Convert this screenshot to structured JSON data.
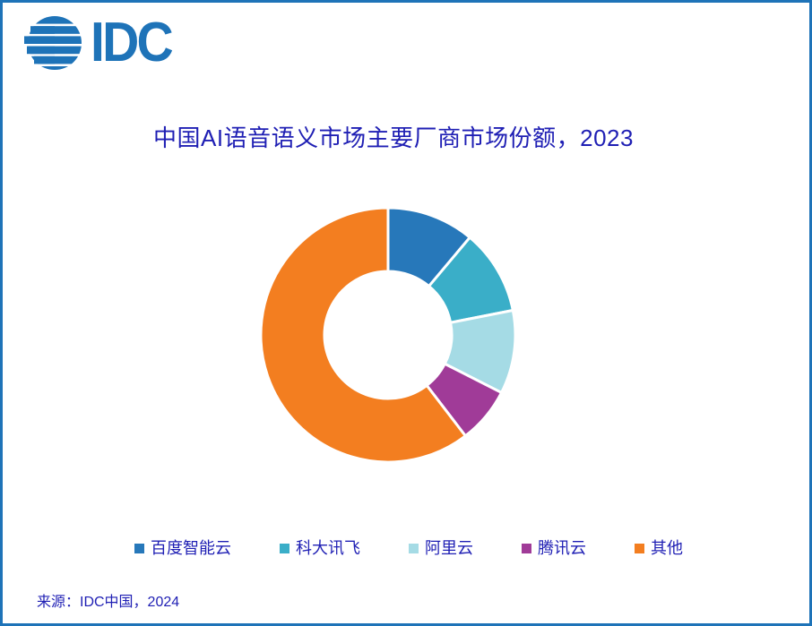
{
  "logo": {
    "text": "IDC"
  },
  "chart_data": {
    "type": "pie",
    "subtype": "donut",
    "title": "中国AI语音语义市场主要厂商市场份额，2023",
    "labels": [
      "百度智能云",
      "科大讯飞",
      "阿里云",
      "腾讯云",
      "其他"
    ],
    "values": [
      11.1,
      10.8,
      10.6,
      7.1,
      60.4
    ],
    "units": "percent-share",
    "colors": [
      "#2778BA",
      "#3AAEC8",
      "#A5DBE5",
      "#A03B98",
      "#F37E20"
    ],
    "start_angle_deg": 0,
    "direction": "clockwise",
    "inner_radius_ratio": 0.5,
    "slice_gap_color": "#ffffff",
    "legend_position": "bottom",
    "data_labels_shown": false
  },
  "footer": {
    "source": "来源：IDC中国，2024"
  },
  "theme": {
    "frame_border_color": "#1E73B8",
    "logo_color": "#1E73B8",
    "title_color": "#1F1FB4",
    "legend_text_color": "#1F1FB4",
    "background": "#ffffff"
  }
}
